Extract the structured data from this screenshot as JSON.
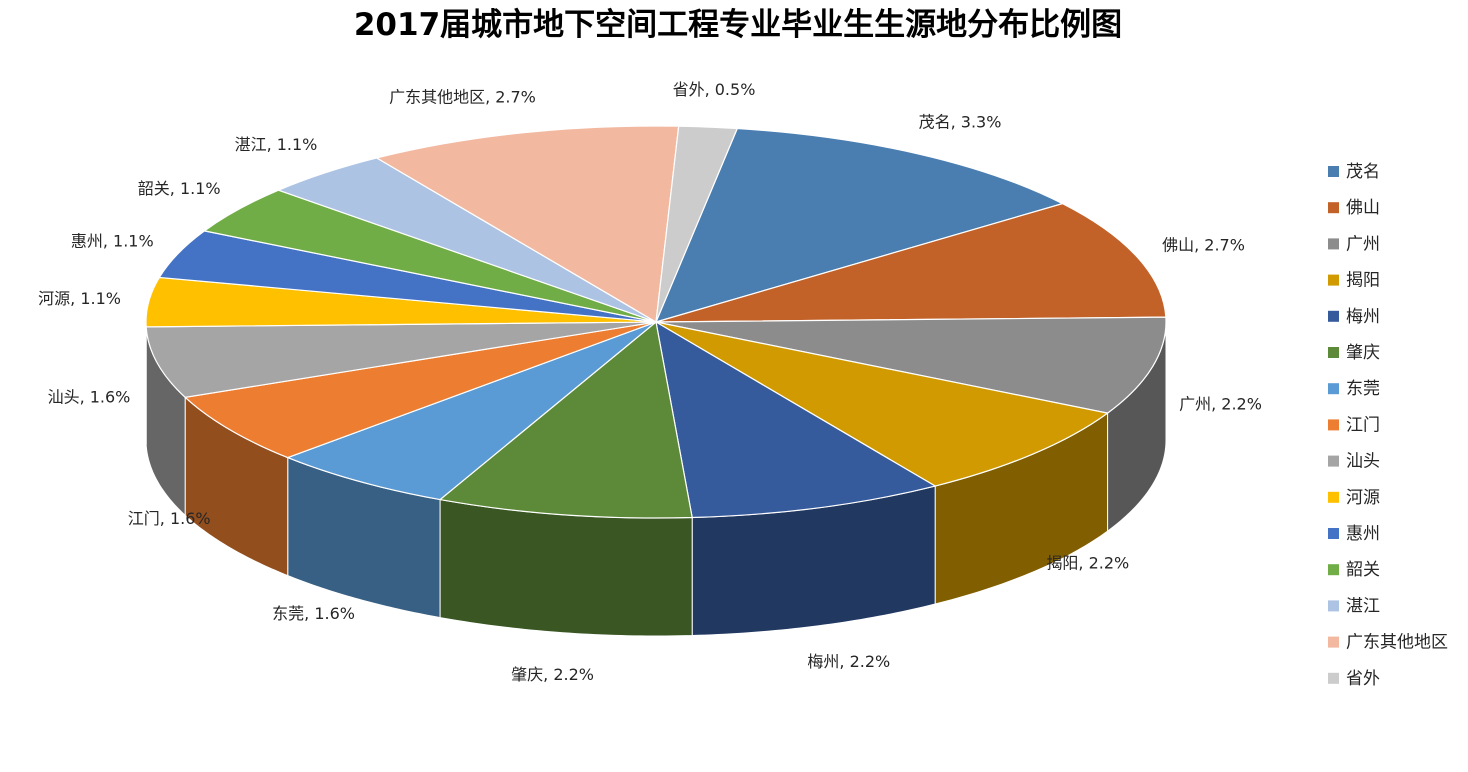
{
  "chart_data": {
    "type": "pie",
    "style": "3d",
    "title": "2017届城市地下空间工程专业毕业生生源地分布比例图",
    "legend_position": "right",
    "slices": [
      {
        "name": "茂名",
        "value": 3.3,
        "label": "茂名, 3.3%",
        "color": "#4a7eb0"
      },
      {
        "name": "佛山",
        "value": 2.7,
        "label": "佛山, 2.7%",
        "color": "#c26128"
      },
      {
        "name": "广州",
        "value": 2.2,
        "label": "广州, 2.2%",
        "color": "#8c8c8c"
      },
      {
        "name": "揭阳",
        "value": 2.2,
        "label": "揭阳, 2.2%",
        "color": "#d09a00"
      },
      {
        "name": "梅州",
        "value": 2.2,
        "label": "梅州, 2.2%",
        "color": "#365b9d"
      },
      {
        "name": "肇庆",
        "value": 2.2,
        "label": "肇庆, 2.2%",
        "color": "#5c8a38"
      },
      {
        "name": "东莞",
        "value": 1.6,
        "label": "东莞, 1.6%",
        "color": "#5b9bd5"
      },
      {
        "name": "江门",
        "value": 1.6,
        "label": "江门, 1.6%",
        "color": "#ed7d31"
      },
      {
        "name": "汕头",
        "value": 1.6,
        "label": "汕头, 1.6%",
        "color": "#a5a5a5"
      },
      {
        "name": "河源",
        "value": 1.1,
        "label": "河源, 1.1%",
        "color": "#ffc000"
      },
      {
        "name": "惠州",
        "value": 1.1,
        "label": "惠州, 1.1%",
        "color": "#4472c4"
      },
      {
        "name": "韶关",
        "value": 1.1,
        "label": "韶关, 1.1%",
        "color": "#70ad47"
      },
      {
        "name": "湛江",
        "value": 1.1,
        "label": "湛江, 1.1%",
        "color": "#adc3e4"
      },
      {
        "name": "广东其他地区",
        "value": 2.7,
        "label": "广东其他地区, 2.7%",
        "color": "#f2b8a0"
      },
      {
        "name": "省外",
        "value": 0.5,
        "label": "省外, 0.5%",
        "color": "#cccccc"
      }
    ]
  }
}
